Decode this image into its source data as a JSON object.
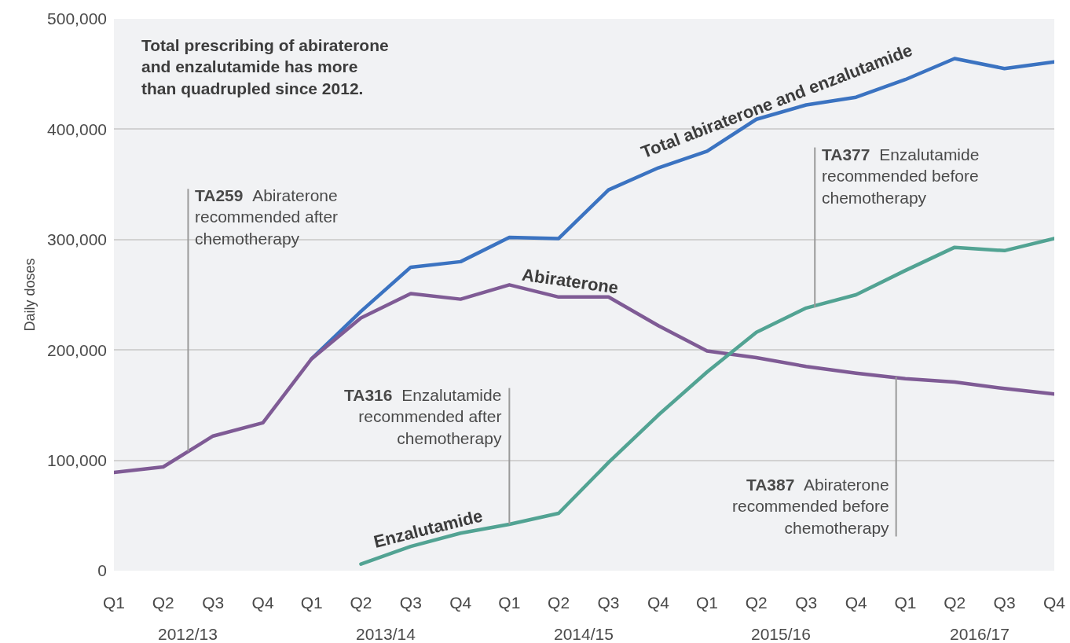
{
  "chart_data": {
    "type": "line",
    "title": "Total prescribing of abiraterone\nand enzalutamide has more\nthan quadrupled since 2012.",
    "ylabel": "Daily doses",
    "x": [
      "2012-04",
      "2012-07",
      "2012-10",
      "2013-01",
      "2013-04",
      "2013-07",
      "2013-10",
      "2014-01",
      "2014-04",
      "2014-07",
      "2014-10",
      "2015-01",
      "2015-04",
      "2015-07",
      "2015-10",
      "2016-01",
      "2016-04",
      "2016-07",
      "2016-10",
      "2017-01"
    ],
    "series": [
      {
        "name": "Total abiraterone and enzalutamide",
        "color": "#3b73c1",
        "values": [
          null,
          null,
          null,
          null,
          192000,
          235000,
          275000,
          280000,
          302000,
          301000,
          345000,
          365000,
          380000,
          409000,
          422000,
          429000,
          445000,
          464000,
          455000,
          461000
        ]
      },
      {
        "name": "Abiraterone",
        "color": "#7f5b95",
        "values": [
          89000,
          94000,
          122000,
          134000,
          192000,
          229000,
          251000,
          246000,
          259000,
          248000,
          248000,
          222000,
          199000,
          193000,
          185000,
          179000,
          174000,
          171000,
          165000,
          160000
        ]
      },
      {
        "name": "Enzalutamide",
        "color": "#52a393",
        "values": [
          null,
          null,
          null,
          null,
          null,
          6000,
          22000,
          34000,
          42000,
          52000,
          98000,
          141000,
          180000,
          216000,
          238000,
          250000,
          272000,
          293000,
          290000,
          301000
        ]
      }
    ],
    "xlim": [
      "2012-04",
      "2017-01"
    ],
    "xticks": [
      {
        "value": "2012-04",
        "label": "Q1"
      },
      {
        "value": "2012-07",
        "label": "Q2"
      },
      {
        "value": "2012-10",
        "label": "Q3"
      },
      {
        "value": "2013-01",
        "label": "Q4"
      },
      {
        "value": "2013-04",
        "label": "Q1"
      },
      {
        "value": "2013-07",
        "label": "Q2"
      },
      {
        "value": "2013-10",
        "label": "Q3"
      },
      {
        "value": "2014-01",
        "label": "Q4"
      },
      {
        "value": "2014-04",
        "label": "Q1"
      },
      {
        "value": "2014-07",
        "label": "Q2"
      },
      {
        "value": "2014-10",
        "label": "Q3"
      },
      {
        "value": "2015-01",
        "label": "Q4"
      },
      {
        "value": "2015-04",
        "label": "Q1"
      },
      {
        "value": "2015-07",
        "label": "Q2"
      },
      {
        "value": "2015-10",
        "label": "Q3"
      },
      {
        "value": "2016-01",
        "label": "Q4"
      },
      {
        "value": "2016-04",
        "label": "Q1"
      },
      {
        "value": "2016-07",
        "label": "Q2"
      },
      {
        "value": "2016-10",
        "label": "Q3"
      },
      {
        "value": "2017-01",
        "label": "Q4"
      }
    ],
    "ylim": [
      0,
      500000
    ],
    "yticks": [
      0,
      {
        "value": 100000,
        "label": "100,000"
      },
      {
        "value": 200000,
        "label": "200,000"
      },
      {
        "value": 300000,
        "label": "300,000"
      },
      {
        "value": 400000,
        "label": "400,000"
      },
      {
        "value": 500000,
        "label": "500,000"
      }
    ],
    "ref_lines": [
      {
        "axis": "x",
        "value": "2012-08-16",
        "label": "TA259 Abiraterone\nrecommended after\nchemotherapy",
        "color": "#9a9a9a"
      },
      {
        "axis": "x",
        "value": "2014-04",
        "label": "TA316 Enzalutamide\nrecommended after\nchemotherapy",
        "color": "#9a9a9a"
      },
      {
        "axis": "x",
        "value": "2015-10-17",
        "label": "TA377 Enzalutamide\nrecommended before\nchemotherapy",
        "color": "#9a9a9a"
      },
      {
        "axis": "x",
        "value": "2016-03-15",
        "label": "TA387 Abiraterone\nrecommended before\nchemotherapy",
        "color": "#9a9a9a"
      }
    ],
    "annotations": [
      "2012/13",
      "2013/14",
      "2014/15",
      "2015/16",
      "2016/17"
    ],
    "grid": "y",
    "legend": false,
    "line_style": "solid"
  }
}
